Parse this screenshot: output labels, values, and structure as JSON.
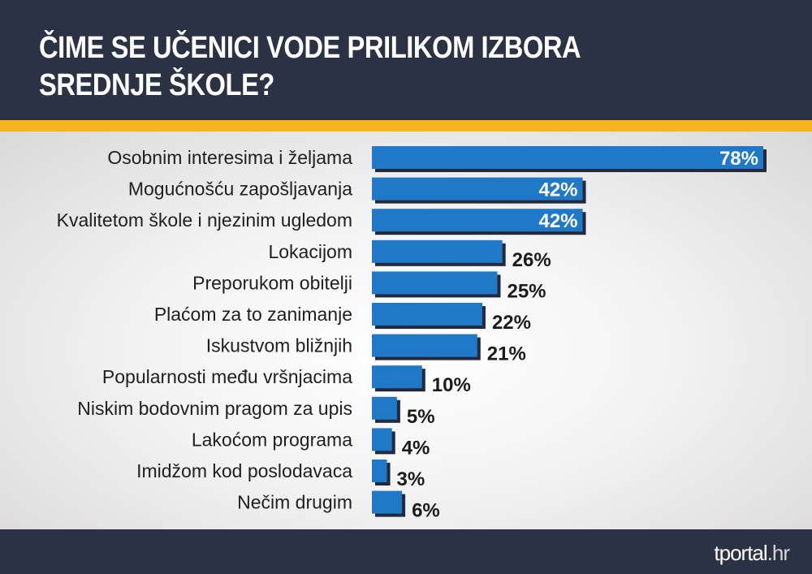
{
  "header": {
    "title_line1": "ČIME SE UČENICI VODE PRILIKOM IZBORA",
    "title_line2": "SREDNJE ŠKOLE?"
  },
  "footer": {
    "logo_main": "tportal",
    "logo_suffix": ".hr"
  },
  "colors": {
    "bar": "#1f78c8",
    "bar_shadow": "#232a3b",
    "accent": "#f7b521",
    "header_bg": "#2b3243"
  },
  "chart_data": {
    "type": "bar",
    "orientation": "horizontal",
    "categories": [
      "Osobnim interesima i željama",
      "Mogućnošću zapošljavanja",
      "Kvalitetom škole i njezinim ugledom",
      "Lokacijom",
      "Preporukom obitelji",
      "Plaćom za to zanimanje",
      "Iskustvom bližnjih",
      "Popularnosti među vršnjacima",
      "Niskim bodovnim pragom za upis",
      "Lakoćom programa",
      "Imidžom kod poslodavaca",
      "Nečim drugim"
    ],
    "values": [
      78,
      42,
      42,
      26,
      25,
      22,
      21,
      10,
      5,
      4,
      3,
      6
    ],
    "value_labels": [
      "78%",
      "42%",
      "42%",
      "26%",
      "25%",
      "22%",
      "21%",
      "10%",
      "5%",
      "4%",
      "3%",
      "6%"
    ],
    "xlim": [
      0,
      78
    ],
    "grid": false,
    "legend": "none"
  }
}
